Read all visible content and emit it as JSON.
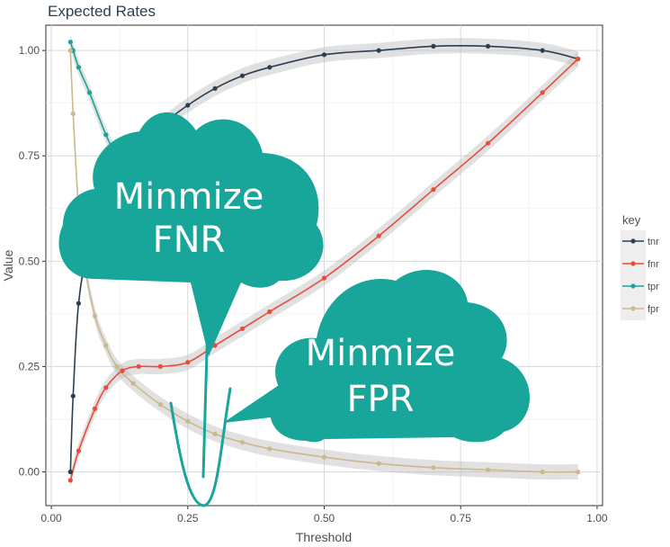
{
  "chart_data": {
    "type": "line",
    "title": "Expected Rates",
    "xlabel": "Threshold",
    "ylabel": "Value",
    "xlim": [
      -0.01,
      1.01
    ],
    "ylim": [
      -0.08,
      1.06
    ],
    "xticks": [
      0.0,
      0.25,
      0.5,
      0.75,
      1.0
    ],
    "xtick_labels": [
      "0.00",
      "0.25",
      "0.50",
      "0.75",
      "1.00"
    ],
    "yticks": [
      0.0,
      0.25,
      0.5,
      0.75,
      1.0
    ],
    "ytick_labels": [
      "0.00",
      "0.25",
      "0.50",
      "0.75",
      "1.00"
    ],
    "grid": true,
    "legend": {
      "title": "key",
      "position": "right"
    },
    "series": [
      {
        "name": "tnr",
        "color": "#2c3e50",
        "x": [
          0.035,
          0.04,
          0.05,
          0.07,
          0.1,
          0.15,
          0.2,
          0.25,
          0.3,
          0.35,
          0.4,
          0.5,
          0.6,
          0.7,
          0.8,
          0.9,
          0.965
        ],
        "y": [
          0.0,
          0.18,
          0.4,
          0.55,
          0.66,
          0.75,
          0.82,
          0.87,
          0.91,
          0.94,
          0.96,
          0.99,
          1.0,
          1.01,
          1.01,
          1.0,
          0.98
        ]
      },
      {
        "name": "fnr",
        "color": "#e74c3c",
        "x": [
          0.035,
          0.05,
          0.08,
          0.1,
          0.13,
          0.16,
          0.2,
          0.25,
          0.3,
          0.35,
          0.4,
          0.5,
          0.6,
          0.7,
          0.8,
          0.9,
          0.965
        ],
        "y": [
          -0.02,
          0.05,
          0.15,
          0.2,
          0.24,
          0.25,
          0.25,
          0.26,
          0.3,
          0.34,
          0.38,
          0.46,
          0.56,
          0.67,
          0.78,
          0.9,
          0.98
        ]
      },
      {
        "name": "tpr",
        "color": "#18a59a",
        "x": [
          0.035,
          0.04,
          0.05,
          0.07,
          0.1,
          0.13,
          0.15
        ],
        "y": [
          1.02,
          1.0,
          0.96,
          0.9,
          0.8,
          0.72,
          0.66
        ]
      },
      {
        "name": "fpr",
        "color": "#c9b98b",
        "x": [
          0.035,
          0.04,
          0.05,
          0.06,
          0.08,
          0.1,
          0.12,
          0.15,
          0.2,
          0.25,
          0.3,
          0.35,
          0.4,
          0.5,
          0.6,
          0.7,
          0.8,
          0.9,
          0.965
        ],
        "y": [
          1.0,
          0.85,
          0.62,
          0.5,
          0.37,
          0.3,
          0.25,
          0.21,
          0.16,
          0.12,
          0.09,
          0.07,
          0.055,
          0.035,
          0.02,
          0.01,
          0.005,
          0.0,
          0.0
        ]
      }
    ],
    "annotations": [
      {
        "text_lines": [
          "Minmize",
          "FNR"
        ],
        "color": "#18a59a"
      },
      {
        "text_lines": [
          "Minmize",
          "FPR"
        ],
        "color": "#18a59a"
      }
    ]
  }
}
